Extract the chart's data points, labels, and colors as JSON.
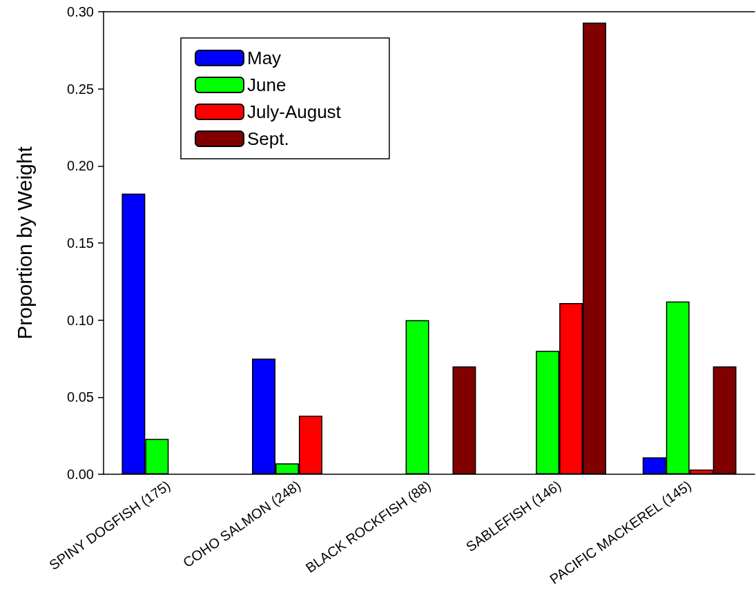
{
  "chart_data": {
    "type": "bar",
    "ylabel": "Proportion by Weight",
    "categories": [
      "SPINY DOGFISH (175)",
      "COHO SALMON (248)",
      "BLACK ROCKFISH (88)",
      "SABLEFISH (146)",
      "PACIFIC MACKEREL (145)"
    ],
    "series": [
      {
        "name": "May",
        "color": "#0000ff",
        "values": [
          0.182,
          0.075,
          null,
          null,
          0.011
        ]
      },
      {
        "name": "June",
        "color": "#00ff00",
        "values": [
          0.023,
          0.007,
          0.1,
          0.08,
          0.112
        ]
      },
      {
        "name": "July-August",
        "color": "#ff0000",
        "values": [
          null,
          0.038,
          null,
          0.111,
          0.003
        ]
      },
      {
        "name": "Sept.",
        "color": "#800000",
        "values": [
          null,
          null,
          0.07,
          0.293,
          0.07
        ]
      }
    ],
    "ylim": [
      0,
      0.3
    ],
    "yticks": [
      {
        "value": 0,
        "label": "0.00"
      },
      {
        "value": 0.05,
        "label": "0.05"
      },
      {
        "value": 0.1,
        "label": "0.10"
      },
      {
        "value": 0.15,
        "label": "0.15"
      },
      {
        "value": 0.2,
        "label": "0.20"
      },
      {
        "value": 0.25,
        "label": "0.25"
      },
      {
        "value": 0.3,
        "label": "0.30"
      }
    ],
    "grid": false,
    "legend": "top left"
  }
}
